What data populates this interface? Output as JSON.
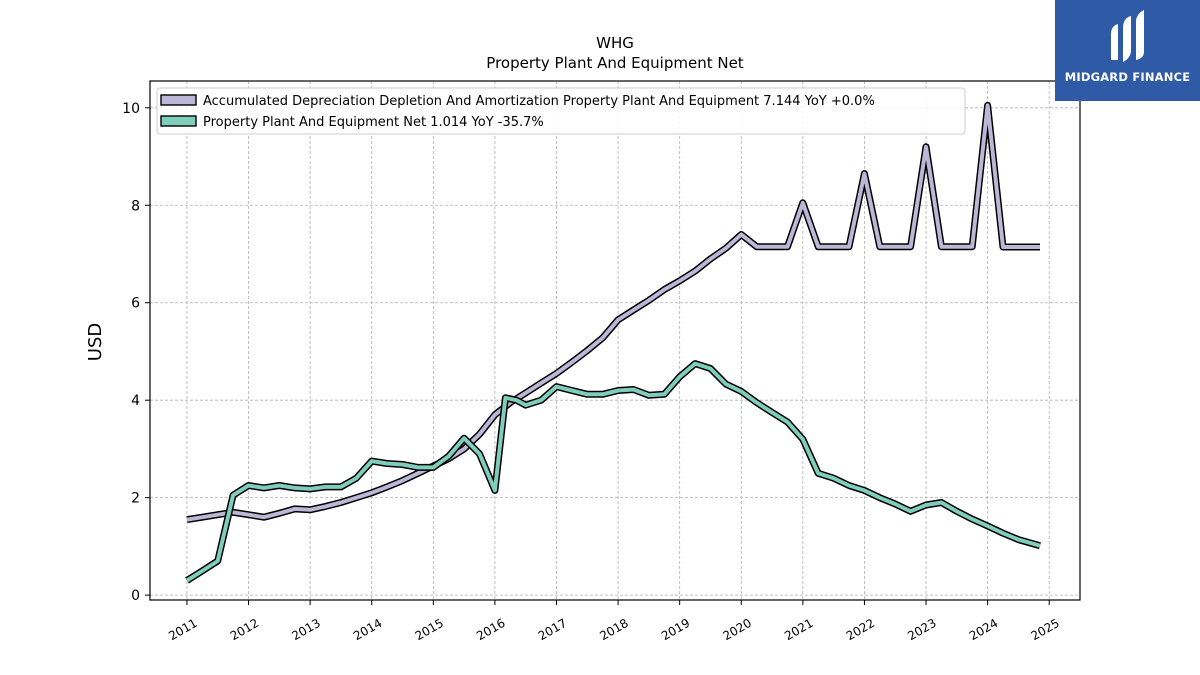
{
  "brand": {
    "name": "MIDGARD FINANCE",
    "color": "#2f5aa6"
  },
  "chart_data": {
    "type": "line",
    "title": "WHG",
    "subtitle": "Property Plant And Equipment Net",
    "xlabel": "",
    "ylabel": "USD",
    "xlim": [
      2010.4,
      2025.5
    ],
    "ylim": [
      -0.1,
      10.55
    ],
    "x_ticks": [
      2011,
      2012,
      2013,
      2014,
      2015,
      2016,
      2017,
      2018,
      2019,
      2020,
      2021,
      2022,
      2023,
      2024,
      2025
    ],
    "x_tick_labels": [
      "2011",
      "2012",
      "2013",
      "2014",
      "2015",
      "2016",
      "2017",
      "2018",
      "2019",
      "2020",
      "2021",
      "2022",
      "2023",
      "2024",
      "2025"
    ],
    "y_ticks": [
      0,
      2,
      4,
      6,
      8,
      10
    ],
    "y_tick_labels": [
      "0",
      "2",
      "4",
      "6",
      "8",
      "10"
    ],
    "grid": true,
    "legend_position": "top-left",
    "series": [
      {
        "name": "Accumulated Depreciation Depletion And Amortization Property Plant And Equipment  7.144 YoY +0.0%",
        "color": "#bcb6d7",
        "points": [
          [
            2011.0,
            1.55
          ],
          [
            2011.25,
            1.6
          ],
          [
            2011.5,
            1.65
          ],
          [
            2011.75,
            1.7
          ],
          [
            2012.0,
            1.65
          ],
          [
            2012.25,
            1.6
          ],
          [
            2012.5,
            1.68
          ],
          [
            2012.75,
            1.77
          ],
          [
            2013.0,
            1.75
          ],
          [
            2013.25,
            1.82
          ],
          [
            2013.5,
            1.9
          ],
          [
            2013.75,
            2.0
          ],
          [
            2014.0,
            2.1
          ],
          [
            2014.25,
            2.22
          ],
          [
            2014.5,
            2.35
          ],
          [
            2014.75,
            2.5
          ],
          [
            2015.0,
            2.65
          ],
          [
            2015.25,
            2.8
          ],
          [
            2015.5,
            3.0
          ],
          [
            2015.75,
            3.3
          ],
          [
            2016.0,
            3.7
          ],
          [
            2016.25,
            3.95
          ],
          [
            2016.5,
            4.15
          ],
          [
            2016.75,
            4.35
          ],
          [
            2017.0,
            4.55
          ],
          [
            2017.25,
            4.78
          ],
          [
            2017.5,
            5.02
          ],
          [
            2017.75,
            5.28
          ],
          [
            2018.0,
            5.65
          ],
          [
            2018.25,
            5.85
          ],
          [
            2018.5,
            6.05
          ],
          [
            2018.75,
            6.27
          ],
          [
            2019.0,
            6.45
          ],
          [
            2019.25,
            6.65
          ],
          [
            2019.5,
            6.9
          ],
          [
            2019.75,
            7.12
          ],
          [
            2020.0,
            7.4
          ],
          [
            2020.25,
            7.15
          ],
          [
            2020.5,
            7.15
          ],
          [
            2020.75,
            7.15
          ],
          [
            2021.0,
            8.05
          ],
          [
            2021.25,
            7.15
          ],
          [
            2021.5,
            7.15
          ],
          [
            2021.75,
            7.15
          ],
          [
            2022.0,
            8.65
          ],
          [
            2022.25,
            7.15
          ],
          [
            2022.5,
            7.15
          ],
          [
            2022.75,
            7.15
          ],
          [
            2023.0,
            9.2
          ],
          [
            2023.25,
            7.15
          ],
          [
            2023.5,
            7.15
          ],
          [
            2023.75,
            7.15
          ],
          [
            2024.0,
            10.05
          ],
          [
            2024.25,
            7.144
          ],
          [
            2024.5,
            7.144
          ],
          [
            2024.75,
            7.144
          ],
          [
            2024.85,
            7.144
          ]
        ]
      },
      {
        "name": "Property Plant And Equipment Net  1.014 YoY -35.7%",
        "color": "#7fcdbb",
        "points": [
          [
            2011.0,
            0.3
          ],
          [
            2011.25,
            0.5
          ],
          [
            2011.5,
            0.7
          ],
          [
            2011.75,
            2.05
          ],
          [
            2012.0,
            2.25
          ],
          [
            2012.25,
            2.2
          ],
          [
            2012.5,
            2.25
          ],
          [
            2012.75,
            2.2
          ],
          [
            2013.0,
            2.18
          ],
          [
            2013.25,
            2.22
          ],
          [
            2013.5,
            2.22
          ],
          [
            2013.75,
            2.4
          ],
          [
            2014.0,
            2.75
          ],
          [
            2014.25,
            2.7
          ],
          [
            2014.5,
            2.68
          ],
          [
            2014.75,
            2.62
          ],
          [
            2015.0,
            2.62
          ],
          [
            2015.25,
            2.85
          ],
          [
            2015.5,
            3.22
          ],
          [
            2015.75,
            2.9
          ],
          [
            2016.0,
            2.15
          ],
          [
            2016.17,
            4.05
          ],
          [
            2016.35,
            4.0
          ],
          [
            2016.5,
            3.9
          ],
          [
            2016.75,
            4.0
          ],
          [
            2017.0,
            4.28
          ],
          [
            2017.25,
            4.2
          ],
          [
            2017.5,
            4.12
          ],
          [
            2017.75,
            4.12
          ],
          [
            2018.0,
            4.2
          ],
          [
            2018.25,
            4.22
          ],
          [
            2018.5,
            4.1
          ],
          [
            2018.75,
            4.12
          ],
          [
            2019.0,
            4.48
          ],
          [
            2019.25,
            4.75
          ],
          [
            2019.5,
            4.65
          ],
          [
            2019.75,
            4.33
          ],
          [
            2020.0,
            4.18
          ],
          [
            2020.25,
            3.95
          ],
          [
            2020.5,
            3.75
          ],
          [
            2020.75,
            3.55
          ],
          [
            2021.0,
            3.2
          ],
          [
            2021.25,
            2.5
          ],
          [
            2021.5,
            2.4
          ],
          [
            2021.75,
            2.25
          ],
          [
            2022.0,
            2.15
          ],
          [
            2022.25,
            2.0
          ],
          [
            2022.5,
            1.87
          ],
          [
            2022.75,
            1.72
          ],
          [
            2023.0,
            1.85
          ],
          [
            2023.25,
            1.9
          ],
          [
            2023.5,
            1.72
          ],
          [
            2023.75,
            1.56
          ],
          [
            2024.0,
            1.42
          ],
          [
            2024.25,
            1.27
          ],
          [
            2024.5,
            1.14
          ],
          [
            2024.85,
            1.014
          ]
        ]
      }
    ]
  }
}
